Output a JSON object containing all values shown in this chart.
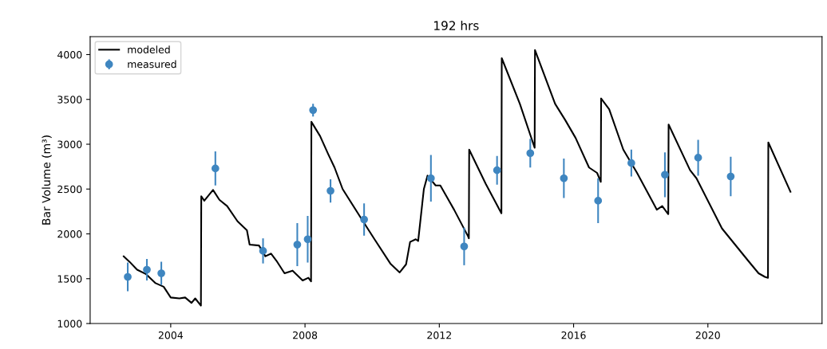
{
  "chart_data": {
    "type": "line",
    "title": "192 hrs",
    "ylabel": "Bar Volume (m³)",
    "xlim": [
      2001.6,
      2023.4
    ],
    "ylim": [
      1000,
      4200
    ],
    "xticks": [
      2004,
      2008,
      2012,
      2016,
      2020
    ],
    "yticks": [
      1000,
      1500,
      2000,
      2500,
      3000,
      3500,
      4000
    ],
    "grid": false,
    "legend": "top left",
    "series": [
      {
        "name": "modeled",
        "color": "#000000",
        "marker": "none",
        "line_style": "solid",
        "x": [
          2002.6,
          2002.77,
          2003.0,
          2003.27,
          2003.55,
          2003.79,
          2004.0,
          2004.26,
          2004.43,
          2004.62,
          2004.73,
          2004.9,
          2004.91,
          2005.0,
          2005.26,
          2005.45,
          2005.68,
          2005.99,
          2006.27,
          2006.35,
          2006.63,
          2006.82,
          2006.99,
          2007.15,
          2007.39,
          2007.63,
          2007.93,
          2008.1,
          2008.18,
          2008.19,
          2008.45,
          2008.69,
          2008.88,
          2009.12,
          2009.66,
          2010.07,
          2010.54,
          2010.82,
          2011.01,
          2011.13,
          2011.3,
          2011.37,
          2011.54,
          2011.65,
          2011.89,
          2012.03,
          2012.44,
          2012.86,
          2012.88,
          2012.89,
          2013.38,
          2013.85,
          2013.86,
          2014.4,
          2014.84,
          2014.85,
          2015.45,
          2015.75,
          2016.06,
          2016.46,
          2016.7,
          2016.81,
          2016.82,
          2017.06,
          2017.48,
          2017.89,
          2018.48,
          2018.64,
          2018.82,
          2018.83,
          2019.47,
          2019.66,
          2020.42,
          2021.2,
          2021.51,
          2021.7,
          2021.79,
          2021.8,
          2022.46
        ],
        "values": [
          1750,
          1690,
          1600,
          1550,
          1450,
          1410,
          1290,
          1280,
          1290,
          1230,
          1280,
          1200,
          2420,
          2370,
          2490,
          2380,
          2310,
          2140,
          2040,
          1880,
          1870,
          1750,
          1780,
          1700,
          1560,
          1590,
          1480,
          1510,
          1470,
          3250,
          3090,
          2890,
          2740,
          2500,
          2180,
          1940,
          1670,
          1570,
          1660,
          1910,
          1940,
          1920,
          2500,
          2650,
          2540,
          2540,
          2270,
          1970,
          1950,
          2940,
          2560,
          2230,
          3960,
          3450,
          2960,
          4050,
          3450,
          3270,
          3070,
          2740,
          2680,
          2580,
          3510,
          3390,
          2940,
          2680,
          2270,
          2310,
          2220,
          3220,
          2710,
          2620,
          2060,
          1700,
          1560,
          1520,
          1510,
          3020,
          2470
        ]
      },
      {
        "name": "measured",
        "type": "scatter",
        "color": "#3f86c0",
        "marker": "circle",
        "x": [
          2002.72,
          2003.29,
          2003.72,
          2005.33,
          2006.75,
          2007.77,
          2008.08,
          2008.24,
          2008.76,
          2009.76,
          2011.75,
          2012.74,
          2013.72,
          2014.71,
          2015.71,
          2016.73,
          2017.72,
          2018.72,
          2019.71,
          2020.68
        ],
        "values": [
          1520,
          1600,
          1560,
          2730,
          1810,
          1880,
          1940,
          3380,
          2480,
          2160,
          2620,
          1860,
          2710,
          2900,
          2620,
          2370,
          2790,
          2660,
          2850,
          2640
        ],
        "errors": [
          160,
          120,
          130,
          190,
          140,
          240,
          260,
          70,
          130,
          180,
          260,
          210,
          160,
          160,
          220,
          250,
          150,
          250,
          200,
          220
        ]
      }
    ]
  }
}
